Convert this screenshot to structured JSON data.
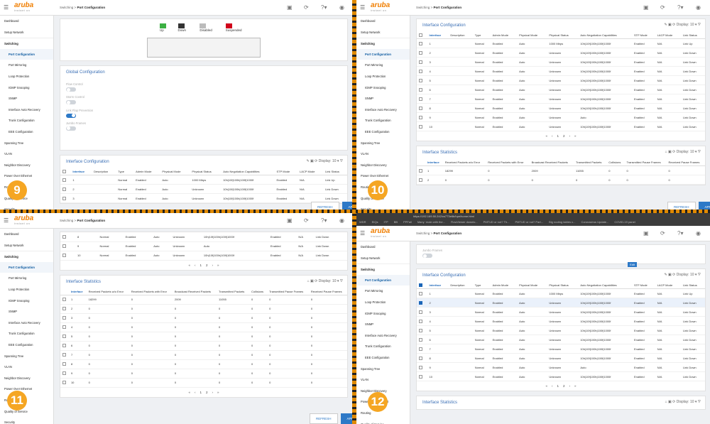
{
  "brand": {
    "name": "aruba",
    "tagline": "instant on"
  },
  "breadcrumb": {
    "parent": "Switching",
    "sep": ">",
    "current": "Port Configuration"
  },
  "sidebar": {
    "items": [
      {
        "label": "Dashboard",
        "type": "top"
      },
      {
        "label": "Setup Network",
        "type": "top"
      },
      {
        "label": "Switching",
        "type": "group"
      },
      {
        "label": "Port Configuration",
        "type": "sub",
        "active": true
      },
      {
        "label": "Port Mirroring",
        "type": "sub"
      },
      {
        "label": "Loop Protection",
        "type": "sub"
      },
      {
        "label": "IGMP Snooping",
        "type": "sub"
      },
      {
        "label": "SNMP",
        "type": "sub"
      },
      {
        "label": "Interface Auto Recovery",
        "type": "sub"
      },
      {
        "label": "Trunk Configuration",
        "type": "sub"
      },
      {
        "label": "EEE Configuration",
        "type": "sub"
      },
      {
        "label": "Spanning Tree",
        "type": "top"
      },
      {
        "label": "VLAN",
        "type": "top"
      },
      {
        "label": "Neighbor Discovery",
        "type": "top"
      },
      {
        "label": "Power Over Ethernet",
        "type": "top"
      },
      {
        "label": "Routing",
        "type": "top"
      },
      {
        "label": "Quality of Service",
        "type": "top"
      },
      {
        "label": "Security",
        "type": "top"
      }
    ]
  },
  "legend": [
    {
      "label": "Up",
      "color": "#3cb043"
    },
    {
      "label": "Down",
      "color": "#333333"
    },
    {
      "label": "Disabled",
      "color": "#bbbbbb"
    },
    {
      "label": "Suspended",
      "color": "#d0021b"
    }
  ],
  "global_config": {
    "title": "Global Configuration",
    "flow_control": "Flow Control",
    "storm_control": "Storm Control",
    "link_flap": "Link Flap Prevention",
    "jumbo_frames": "Jumbo Frames"
  },
  "interface_config": {
    "title": "Interface Configuration",
    "display_label": "Display:",
    "display_value": "10",
    "edit_tooltip": "Edit",
    "headers": [
      "Interface",
      "Description",
      "Type",
      "Admin Mode",
      "Physical Mode",
      "Physical Status",
      "Auto Negotiation Capabilities",
      "STP Mode",
      "LACP Mode",
      "Link Status"
    ],
    "rows": [
      {
        "id": "1",
        "type": "Normal",
        "admin": "Enabled",
        "phys_mode": "Auto",
        "phys_status": "1000 Mbps",
        "auto_neg": "10h|10f|100h|100f|1000f",
        "stp": "Enabled",
        "lacp": "N/A",
        "link": "Link Up"
      },
      {
        "id": "2",
        "type": "Normal",
        "admin": "Enabled",
        "phys_mode": "Auto",
        "phys_status": "Unknown",
        "auto_neg": "10h|10f|100h|100f|1000f",
        "stp": "Enabled",
        "lacp": "N/A",
        "link": "Link Down"
      },
      {
        "id": "3",
        "type": "Normal",
        "admin": "Enabled",
        "phys_mode": "Auto",
        "phys_status": "Unknown",
        "auto_neg": "10h|10f|100h|100f|1000f",
        "stp": "Enabled",
        "lacp": "N/A",
        "link": "Link Down"
      },
      {
        "id": "4",
        "type": "Normal",
        "admin": "Enabled",
        "phys_mode": "Auto",
        "phys_status": "Unknown",
        "auto_neg": "10h|10f|100h|100f|1000f",
        "stp": "Enabled",
        "lacp": "N/A",
        "link": "Link Down"
      },
      {
        "id": "5",
        "type": "Normal",
        "admin": "Enabled",
        "phys_mode": "Auto",
        "phys_status": "Unknown",
        "auto_neg": "10h|10f|100h|100f|1000f",
        "stp": "Enabled",
        "lacp": "N/A",
        "link": "Link Down"
      },
      {
        "id": "6",
        "type": "Normal",
        "admin": "Enabled",
        "phys_mode": "Auto",
        "phys_status": "Unknown",
        "auto_neg": "10h|10f|100h|100f|1000f",
        "stp": "Enabled",
        "lacp": "N/A",
        "link": "Link Down"
      },
      {
        "id": "7",
        "type": "Normal",
        "admin": "Enabled",
        "phys_mode": "Auto",
        "phys_status": "Unknown",
        "auto_neg": "10h|10f|100h|100f|1000f",
        "stp": "Enabled",
        "lacp": "N/A",
        "link": "Link Down"
      },
      {
        "id": "8",
        "type": "Normal",
        "admin": "Enabled",
        "phys_mode": "Auto",
        "phys_status": "Unknown",
        "auto_neg": "10h|10f|100h|100f|1000f",
        "stp": "Enabled",
        "lacp": "N/A",
        "link": "Link Down"
      },
      {
        "id": "9",
        "type": "Normal",
        "admin": "Enabled",
        "phys_mode": "Auto",
        "phys_status": "Unknown",
        "auto_neg": "Auto",
        "stp": "Enabled",
        "lacp": "N/A",
        "link": "Link Down"
      },
      {
        "id": "10",
        "type": "Normal",
        "admin": "Enabled",
        "phys_mode": "Auto",
        "phys_status": "Unknown",
        "auto_neg": "10h|10f|100h|100f|1000f",
        "stp": "Enabled",
        "lacp": "N/A",
        "link": "Link Down"
      }
    ],
    "pager": [
      "«",
      "‹",
      "1",
      "2",
      "›",
      "»"
    ]
  },
  "interface_stats": {
    "title": "Interface Statistics",
    "headers": [
      "Interface",
      "Received Packets w/o Error",
      "Received Packets with Error",
      "Broadcast Received Packets",
      "Transmitted Packets",
      "Collisions",
      "Transmitted Pause Frames",
      "Received Pause Frames"
    ],
    "rows": [
      [
        "1",
        "18299",
        "0",
        "2009",
        "11055",
        "0",
        "0",
        "0"
      ],
      [
        "2",
        "0",
        "0",
        "0",
        "0",
        "0",
        "0",
        "0"
      ],
      [
        "3",
        "0",
        "0",
        "0",
        "0",
        "0",
        "0",
        "0"
      ],
      [
        "4",
        "0",
        "0",
        "0",
        "0",
        "0",
        "0",
        "0"
      ],
      [
        "5",
        "0",
        "0",
        "0",
        "0",
        "0",
        "0",
        "0"
      ],
      [
        "6",
        "0",
        "0",
        "0",
        "0",
        "0",
        "0",
        "0"
      ],
      [
        "7",
        "0",
        "0",
        "0",
        "0",
        "0",
        "0",
        "0"
      ],
      [
        "8",
        "0",
        "0",
        "0",
        "0",
        "0",
        "0",
        "0"
      ],
      [
        "9",
        "0",
        "0",
        "0",
        "0",
        "0",
        "0",
        "0"
      ],
      [
        "10",
        "0",
        "0",
        "0",
        "0",
        "0",
        "0",
        "0"
      ]
    ]
  },
  "footer": {
    "refresh": "REFRESH",
    "apply": "APPLY"
  },
  "steps": [
    "9",
    "10",
    "11",
    "12"
  ],
  "browser": {
    "url": "https://192.169.50.242/cs773e6b/hpe/home.html",
    "bookmarks": [
      "WDR",
      "EIQs",
      "ITP",
      "BB",
      "PPFall",
      "Many ·main with the...",
      "FlowViewer downlo...",
      "PMTUD or not? Th...",
      "PMTUD or not? Part...",
      "Big routing tables c...",
      "Coronavirus Update...",
      "COVID-19 panel"
    ]
  }
}
